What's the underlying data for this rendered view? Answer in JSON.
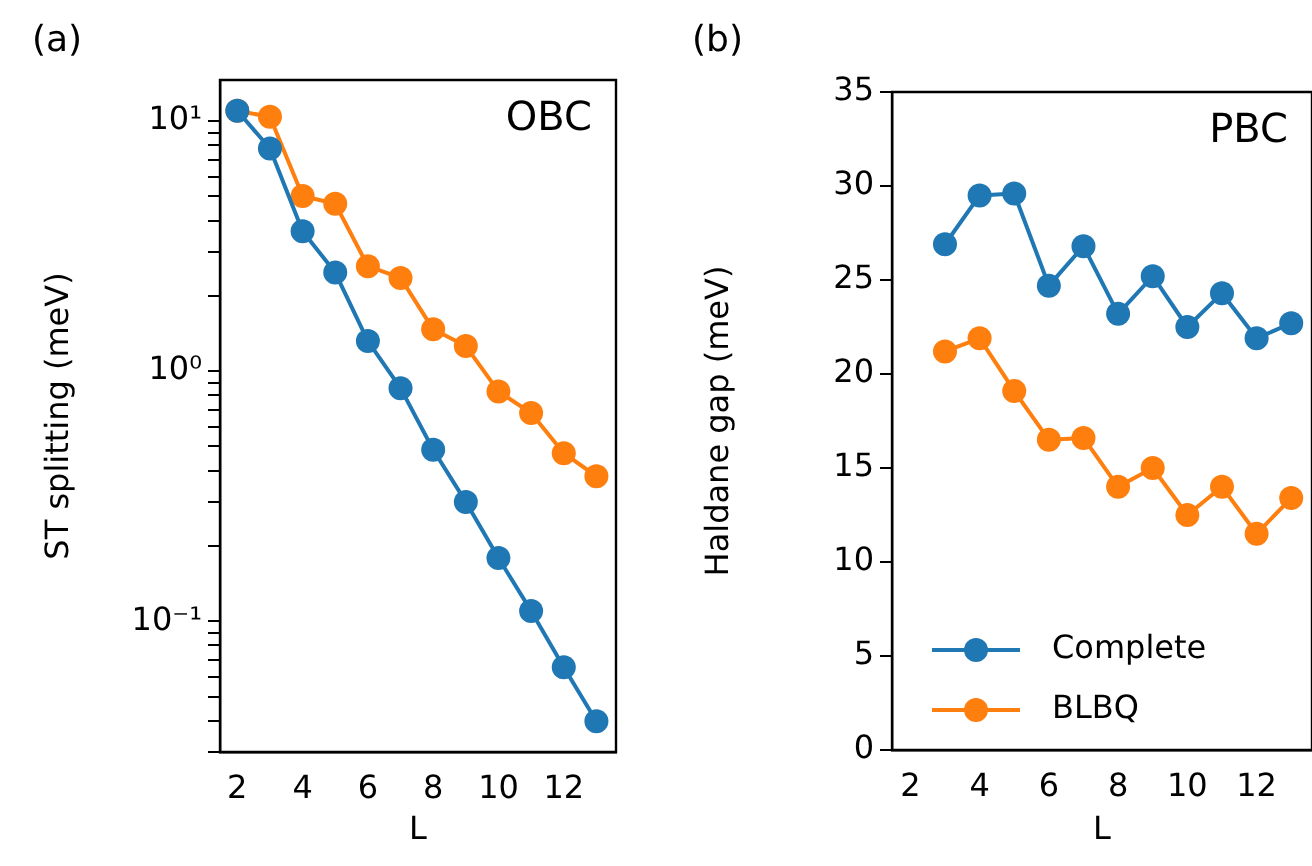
{
  "chart_data": [
    {
      "type": "line",
      "title": "(a)",
      "xlabel": "L",
      "ylabel": "ST splitting (meV)",
      "log": "y",
      "grid": false,
      "legend": false,
      "marker": "circle",
      "annotations": [
        "OBC"
      ],
      "x": [
        2,
        3,
        4,
        5,
        6,
        7,
        8,
        9,
        10,
        11,
        12,
        13
      ],
      "xlim": [
        1.47,
        13.6
      ],
      "xticks": [
        2,
        4,
        6,
        8,
        10,
        12
      ],
      "ylim": [
        0.03,
        14.6
      ],
      "yticks": [
        {
          "value": 0.03,
          "label": null
        },
        {
          "value": 0.04,
          "label": null
        },
        {
          "value": 0.05,
          "label": null
        },
        {
          "value": 0.06,
          "label": null
        },
        {
          "value": 0.07,
          "label": null
        },
        {
          "value": 0.08,
          "label": null
        },
        {
          "value": 0.09,
          "label": null
        },
        {
          "value": 0.1,
          "label": "10⁻¹"
        },
        {
          "value": 0.2,
          "label": null
        },
        {
          "value": 0.3,
          "label": null
        },
        {
          "value": 0.4,
          "label": null
        },
        {
          "value": 0.5,
          "label": null
        },
        {
          "value": 0.6,
          "label": null
        },
        {
          "value": 0.7,
          "label": null
        },
        {
          "value": 0.8,
          "label": null
        },
        {
          "value": 0.9,
          "label": null
        },
        {
          "value": 1,
          "label": "10⁰"
        },
        {
          "value": 2,
          "label": null
        },
        {
          "value": 3,
          "label": null
        },
        {
          "value": 4,
          "label": null
        },
        {
          "value": 5,
          "label": null
        },
        {
          "value": 6,
          "label": null
        },
        {
          "value": 7,
          "label": null
        },
        {
          "value": 8,
          "label": null
        },
        {
          "value": 9,
          "label": null
        },
        {
          "value": 10,
          "label": "10¹"
        }
      ],
      "series": [
        {
          "color": "#1f77b4",
          "values": [
            11.0,
            7.77,
            3.63,
            2.48,
            1.32,
            0.855,
            0.485,
            0.3,
            0.179,
            0.11,
            0.0655,
            0.0398
          ]
        },
        {
          "color": "#ff7f0e",
          "values": [
            11.0,
            10.4,
            5.02,
            4.67,
            2.63,
            2.36,
            1.47,
            1.26,
            0.83,
            0.68,
            0.47,
            0.38
          ]
        }
      ]
    },
    {
      "type": "line",
      "title": "(b)",
      "xlabel": "L",
      "ylabel": "Haldane gap (meV)",
      "grid": false,
      "legend": "bottom left",
      "marker": "circle",
      "annotations": [
        "PBC"
      ],
      "x": [
        3,
        4,
        5,
        6,
        7,
        8,
        9,
        10,
        11,
        12,
        13
      ],
      "xlim": [
        1.47,
        13.6
      ],
      "xticks": [
        2,
        4,
        6,
        8,
        10,
        12
      ],
      "ylim": [
        0,
        35
      ],
      "yticks": [
        0,
        5,
        10,
        15,
        20,
        25,
        30,
        35
      ],
      "series": [
        {
          "name": "Complete",
          "color": "#1f77b4",
          "values": [
            26.9,
            29.5,
            29.6,
            24.7,
            26.8,
            23.2,
            25.2,
            22.5,
            24.3,
            21.9,
            22.7
          ]
        },
        {
          "name": "BLBQ",
          "color": "#ff7f0e",
          "values": [
            21.2,
            21.9,
            19.1,
            16.5,
            16.6,
            14.0,
            15.0,
            12.5,
            14.0,
            11.5,
            13.4
          ]
        }
      ]
    }
  ]
}
